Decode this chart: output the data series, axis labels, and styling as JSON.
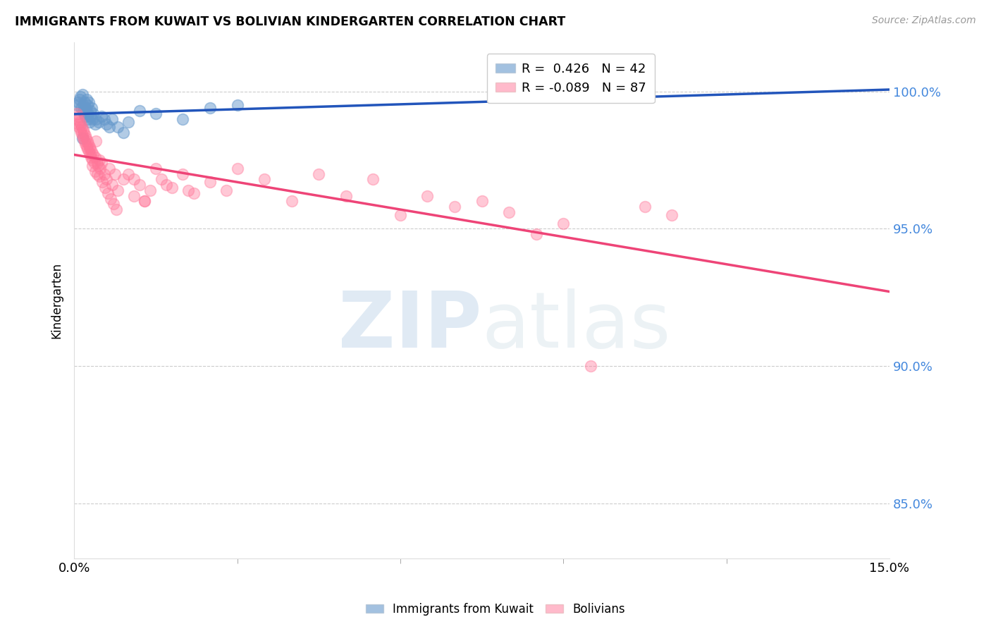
{
  "title": "IMMIGRANTS FROM KUWAIT VS BOLIVIAN KINDERGARTEN CORRELATION CHART",
  "source": "Source: ZipAtlas.com",
  "ylabel": "Kindergarten",
  "right_yticks": [
    85.0,
    90.0,
    95.0,
    100.0
  ],
  "xlim": [
    0.0,
    15.0
  ],
  "ylim": [
    83.0,
    101.8
  ],
  "blue_R": 0.426,
  "blue_N": 42,
  "pink_R": -0.089,
  "pink_N": 87,
  "blue_color": "#6699CC",
  "pink_color": "#FF7799",
  "blue_line_color": "#2255BB",
  "pink_line_color": "#EE4477",
  "blue_x": [
    0.05,
    0.08,
    0.1,
    0.12,
    0.13,
    0.15,
    0.16,
    0.17,
    0.18,
    0.19,
    0.2,
    0.21,
    0.22,
    0.23,
    0.24,
    0.25,
    0.26,
    0.27,
    0.28,
    0.29,
    0.3,
    0.32,
    0.33,
    0.35,
    0.38,
    0.4,
    0.45,
    0.5,
    0.6,
    0.7,
    0.8,
    1.0,
    1.2,
    1.5,
    2.0,
    2.5,
    3.0,
    0.55,
    0.65,
    0.9,
    10.5,
    0.15
  ],
  "blue_y": [
    99.5,
    99.6,
    99.7,
    99.8,
    99.4,
    99.9,
    99.3,
    99.5,
    99.2,
    99.6,
    99.4,
    99.1,
    99.3,
    99.7,
    99.0,
    99.5,
    99.2,
    99.6,
    98.9,
    99.3,
    99.1,
    99.4,
    99.0,
    99.2,
    98.8,
    99.0,
    98.9,
    99.1,
    98.8,
    99.0,
    98.7,
    98.9,
    99.3,
    99.2,
    99.0,
    99.4,
    99.5,
    99.0,
    98.7,
    98.5,
    100.0,
    98.3
  ],
  "pink_x": [
    0.05,
    0.06,
    0.07,
    0.08,
    0.09,
    0.1,
    0.11,
    0.12,
    0.13,
    0.14,
    0.15,
    0.16,
    0.17,
    0.18,
    0.19,
    0.2,
    0.21,
    0.22,
    0.23,
    0.24,
    0.25,
    0.26,
    0.27,
    0.28,
    0.29,
    0.3,
    0.31,
    0.32,
    0.33,
    0.35,
    0.37,
    0.39,
    0.4,
    0.42,
    0.44,
    0.46,
    0.48,
    0.5,
    0.55,
    0.6,
    0.65,
    0.7,
    0.75,
    0.8,
    0.9,
    1.0,
    1.1,
    1.2,
    1.3,
    1.4,
    1.5,
    1.6,
    1.8,
    2.0,
    2.2,
    2.5,
    2.8,
    3.0,
    3.5,
    4.0,
    4.5,
    5.0,
    5.5,
    6.0,
    6.5,
    7.0,
    7.5,
    8.0,
    8.5,
    9.0,
    0.34,
    0.38,
    0.43,
    0.47,
    0.52,
    0.57,
    0.62,
    0.67,
    0.72,
    0.77,
    1.1,
    1.3,
    1.7,
    2.1,
    10.5,
    11.0,
    9.5
  ],
  "pink_y": [
    99.2,
    99.0,
    98.8,
    99.1,
    98.7,
    98.9,
    98.6,
    98.8,
    98.5,
    98.7,
    98.4,
    98.6,
    98.3,
    98.5,
    98.2,
    98.4,
    98.1,
    98.3,
    98.0,
    98.2,
    97.9,
    98.1,
    97.8,
    98.0,
    97.7,
    97.9,
    97.6,
    97.8,
    97.5,
    97.7,
    97.4,
    97.6,
    98.2,
    97.4,
    97.3,
    97.5,
    97.2,
    97.4,
    97.0,
    96.8,
    97.2,
    96.6,
    97.0,
    96.4,
    96.8,
    97.0,
    96.2,
    96.6,
    96.0,
    96.4,
    97.2,
    96.8,
    96.5,
    97.0,
    96.3,
    96.7,
    96.4,
    97.2,
    96.8,
    96.0,
    97.0,
    96.2,
    96.8,
    95.5,
    96.2,
    95.8,
    96.0,
    95.6,
    94.8,
    95.2,
    97.3,
    97.1,
    97.0,
    96.9,
    96.7,
    96.5,
    96.3,
    96.1,
    95.9,
    95.7,
    96.8,
    96.0,
    96.6,
    96.4,
    95.8,
    95.5,
    90.0
  ]
}
